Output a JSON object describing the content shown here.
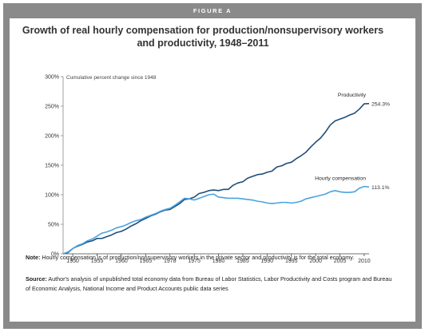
{
  "figure_label": "FIGURE A",
  "note": {
    "label": "Note:",
    "text": " Hourly compensation is of production/nonsupervisory workers in the private sector and productivity is for the total economy."
  },
  "source": {
    "label": "Source:",
    "text": " Author's analysis of unpublished total economy data from Bureau of Labor Statistics, Labor Productivity and Costs program and Bureau of Economic Analysis, National Income and Product Accounts public data series"
  },
  "colors": {
    "frame": "#8a8a8a",
    "productivity": "#1f4e79",
    "hourly_compensation": "#4aa3df",
    "gridline": "#dddddd",
    "axis": "#888888"
  },
  "chart_data": {
    "type": "line",
    "title": "Growth of real hourly compensation for production/nonsupervisory workers and productivity, 1948–2011",
    "ylabel": "Cumulative percent change since 1948",
    "xlabel": "",
    "xlim": [
      1948,
      2011
    ],
    "ylim": [
      0,
      300
    ],
    "x_ticks": [
      "1950",
      "1955",
      "1960",
      "1965",
      "1970",
      "1975",
      "1980",
      "1985",
      "1990",
      "1995",
      "2000",
      "2005",
      "2010"
    ],
    "y_ticks": [
      "0%",
      "50%",
      "100%",
      "150%",
      "200%",
      "250%",
      "300%"
    ],
    "grid": false,
    "x": [
      1948,
      1949,
      1950,
      1951,
      1952,
      1953,
      1954,
      1955,
      1956,
      1957,
      1958,
      1959,
      1960,
      1961,
      1962,
      1963,
      1964,
      1965,
      1966,
      1967,
      1968,
      1969,
      1970,
      1971,
      1972,
      1973,
      1974,
      1975,
      1976,
      1977,
      1978,
      1979,
      1980,
      1981,
      1982,
      1983,
      1984,
      1985,
      1986,
      1987,
      1988,
      1989,
      1990,
      1991,
      1992,
      1993,
      1994,
      1995,
      1996,
      1997,
      1998,
      1999,
      2000,
      2001,
      2002,
      2003,
      2004,
      2005,
      2006,
      2007,
      2008,
      2009,
      2010,
      2011
    ],
    "series": [
      {
        "name": "Productivity",
        "end_label": "254.3%",
        "values": [
          0,
          2,
          9,
          13,
          16,
          20,
          22,
          26,
          26,
          29,
          32,
          36,
          38,
          42,
          47,
          51,
          56,
          60,
          64,
          67,
          71,
          74,
          75,
          80,
          85,
          92,
          93,
          96,
          102,
          104,
          107,
          108,
          107,
          109,
          109,
          116,
          120,
          122,
          128,
          131,
          134,
          135,
          138,
          140,
          147,
          149,
          153,
          155,
          161,
          166,
          172,
          181,
          189,
          196,
          206,
          218,
          225,
          228,
          231,
          235,
          238,
          245,
          254,
          254.3
        ]
      },
      {
        "name": "Hourly compensation",
        "end_label": "113.1%",
        "values": [
          0,
          3,
          9,
          14,
          17,
          22,
          25,
          30,
          35,
          37,
          40,
          44,
          46,
          49,
          53,
          56,
          58,
          62,
          65,
          68,
          72,
          75,
          77,
          82,
          88,
          94,
          93,
          91,
          94,
          97,
          100,
          101,
          96,
          95,
          94,
          94,
          94,
          93,
          92,
          91,
          89,
          88,
          86,
          85,
          86,
          87,
          87,
          86,
          87,
          89,
          93,
          95,
          97,
          99,
          101,
          105,
          107,
          105,
          104,
          104,
          105,
          111,
          114,
          113.1
        ]
      }
    ]
  }
}
